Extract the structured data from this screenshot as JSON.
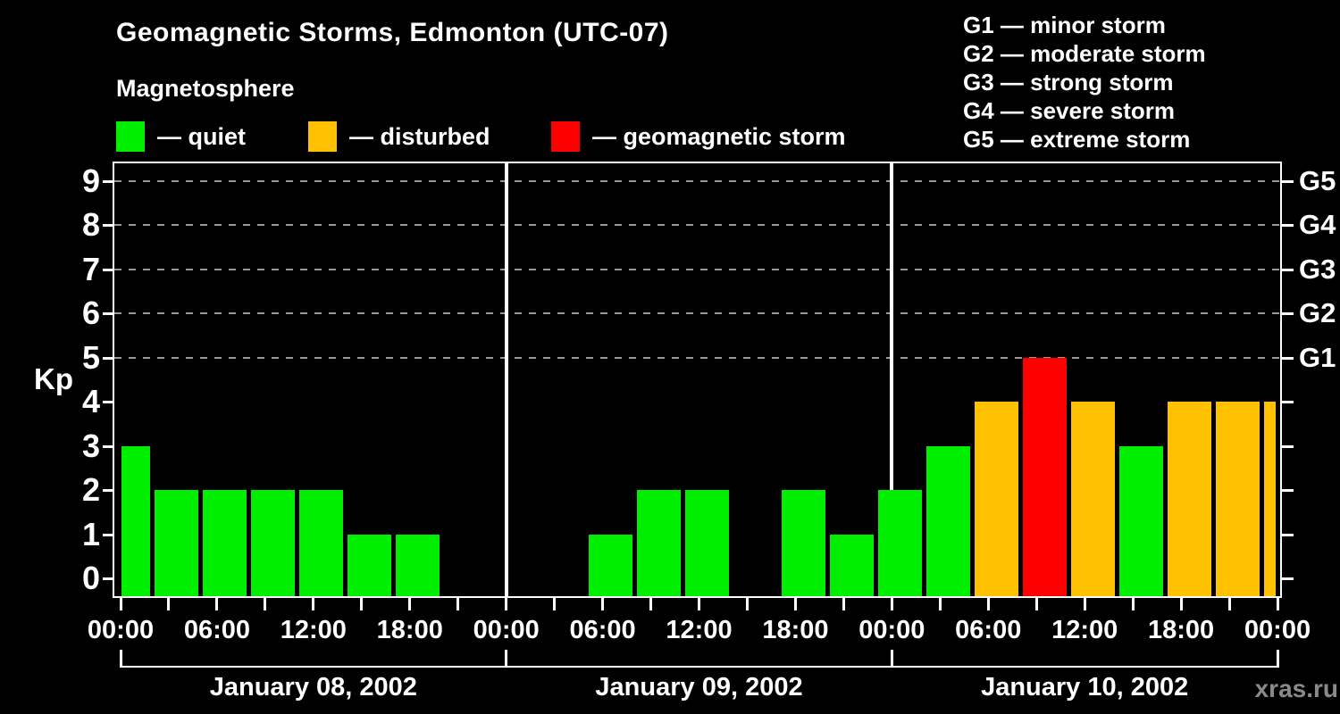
{
  "title": "Geomagnetic Storms, Edmonton (UTC-07)",
  "legend": {
    "title": "Magnetosphere",
    "items": [
      {
        "label": "— quiet",
        "status": "quiet",
        "color": "#00ee00"
      },
      {
        "label": "— disturbed",
        "status": "disturbed",
        "color": "#ffc000"
      },
      {
        "label": "— geomagnetic storm",
        "status": "storm",
        "color": "#ff0000"
      }
    ]
  },
  "g_scale_legend": [
    "G1 — minor storm",
    "G2 — moderate storm",
    "G3 — strong storm",
    "G4 — severe storm",
    "G5 — extreme storm"
  ],
  "watermark": "xras.ru",
  "chart_data": {
    "type": "bar",
    "title": "Geomagnetic Storms, Edmonton (UTC-07)",
    "ylabel": "Kp",
    "ylim": [
      0,
      9
    ],
    "grid": "dashed horizontal lines at storm levels only",
    "hours_span": 72,
    "x_tick_every_hours": 3,
    "x_label_every_hours": 6,
    "day_boundaries_hours": [
      24,
      48
    ],
    "grid_lines_at_kp": [
      5,
      6,
      7,
      8,
      9
    ],
    "y_tick_labels": [
      "0",
      "1",
      "2",
      "3",
      "4",
      "5",
      "6",
      "7",
      "8",
      "9"
    ],
    "g_axis": [
      {
        "kp": 5,
        "label": "G1"
      },
      {
        "kp": 6,
        "label": "G2"
      },
      {
        "kp": 7,
        "label": "G3"
      },
      {
        "kp": 8,
        "label": "G4"
      },
      {
        "kp": 9,
        "label": "G5"
      }
    ],
    "x_tick_labels": [
      "00:00",
      "06:00",
      "12:00",
      "18:00",
      "00:00",
      "06:00",
      "12:00",
      "18:00",
      "00:00",
      "06:00",
      "12:00",
      "18:00",
      "00:00"
    ],
    "days": [
      "January 08, 2002",
      "January 09, 2002",
      "January 10, 2002"
    ],
    "status_colors": {
      "quiet": "#00ee00",
      "disturbed": "#ffc000",
      "storm": "#ff0000"
    },
    "kp_status_rule": {
      "quiet_max_kp": 3,
      "disturbed_kp": 4,
      "storm_min_kp": 5
    },
    "intervals": [
      {
        "start_hour": 0,
        "end_hour": 2,
        "kp": 3,
        "status": "quiet",
        "clip": "left"
      },
      {
        "start_hour": 2,
        "end_hour": 5,
        "kp": 2,
        "status": "quiet"
      },
      {
        "start_hour": 5,
        "end_hour": 8,
        "kp": 2,
        "status": "quiet"
      },
      {
        "start_hour": 8,
        "end_hour": 11,
        "kp": 2,
        "status": "quiet"
      },
      {
        "start_hour": 11,
        "end_hour": 14,
        "kp": 2,
        "status": "quiet"
      },
      {
        "start_hour": 14,
        "end_hour": 17,
        "kp": 1,
        "status": "quiet"
      },
      {
        "start_hour": 17,
        "end_hour": 20,
        "kp": 1,
        "status": "quiet"
      },
      {
        "start_hour": 20,
        "end_hour": 23,
        "kp": 0,
        "status": "quiet"
      },
      {
        "start_hour": 23,
        "end_hour": 26,
        "kp": 0,
        "status": "quiet"
      },
      {
        "start_hour": 26,
        "end_hour": 29,
        "kp": 0,
        "status": "quiet"
      },
      {
        "start_hour": 29,
        "end_hour": 32,
        "kp": 1,
        "status": "quiet"
      },
      {
        "start_hour": 32,
        "end_hour": 35,
        "kp": 2,
        "status": "quiet"
      },
      {
        "start_hour": 35,
        "end_hour": 38,
        "kp": 2,
        "status": "quiet"
      },
      {
        "start_hour": 38,
        "end_hour": 41,
        "kp": 0,
        "status": "quiet"
      },
      {
        "start_hour": 41,
        "end_hour": 44,
        "kp": 2,
        "status": "quiet"
      },
      {
        "start_hour": 44,
        "end_hour": 47,
        "kp": 1,
        "status": "quiet"
      },
      {
        "start_hour": 47,
        "end_hour": 50,
        "kp": 2,
        "status": "quiet"
      },
      {
        "start_hour": 50,
        "end_hour": 53,
        "kp": 3,
        "status": "quiet"
      },
      {
        "start_hour": 53,
        "end_hour": 56,
        "kp": 4,
        "status": "disturbed"
      },
      {
        "start_hour": 56,
        "end_hour": 59,
        "kp": 5,
        "status": "storm"
      },
      {
        "start_hour": 59,
        "end_hour": 62,
        "kp": 4,
        "status": "disturbed"
      },
      {
        "start_hour": 62,
        "end_hour": 65,
        "kp": 3,
        "status": "quiet"
      },
      {
        "start_hour": 65,
        "end_hour": 68,
        "kp": 4,
        "status": "disturbed"
      },
      {
        "start_hour": 68,
        "end_hour": 71,
        "kp": 4,
        "status": "disturbed"
      },
      {
        "start_hour": 71,
        "end_hour": 72,
        "kp": 4,
        "status": "disturbed",
        "clip": "right"
      }
    ]
  }
}
